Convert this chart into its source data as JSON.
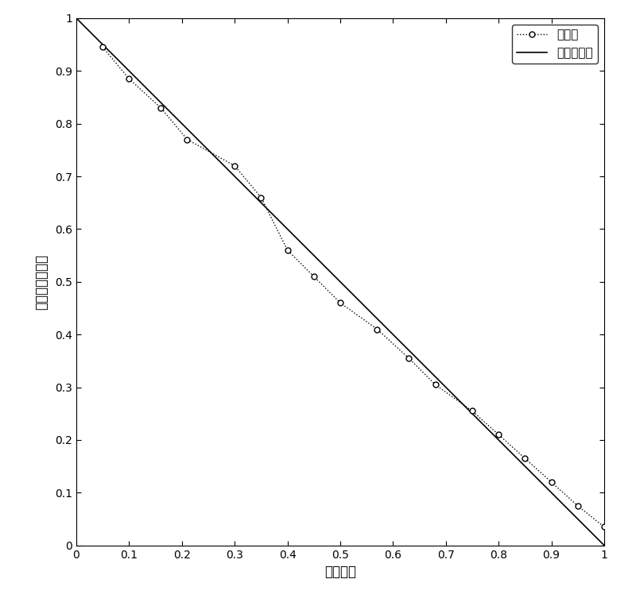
{
  "measured_x": [
    0.05,
    0.1,
    0.16,
    0.21,
    0.3,
    0.35,
    0.4,
    0.45,
    0.5,
    0.57,
    0.63,
    0.68,
    0.75,
    0.8,
    0.85,
    0.9,
    0.95,
    1.0
  ],
  "measured_y": [
    0.945,
    0.885,
    0.83,
    0.77,
    0.72,
    0.66,
    0.56,
    0.51,
    0.46,
    0.41,
    0.355,
    0.305,
    0.255,
    0.21,
    0.165,
    0.12,
    0.075,
    0.035
  ],
  "fit_x": [
    0.0,
    1.0
  ],
  "fit_y": [
    1.0,
    0.0
  ],
  "xlabel": "液相含率",
  "ylabel": "归一化的电阻値",
  "legend_measured": "测量値",
  "legend_fit": "线性拟合値",
  "xlim": [
    0.0,
    1.0
  ],
  "ylim": [
    0.0,
    1.0
  ],
  "xticks": [
    0.0,
    0.1,
    0.2,
    0.3,
    0.4,
    0.5,
    0.6,
    0.7,
    0.8,
    0.9,
    1.0
  ],
  "yticks": [
    0.0,
    0.1,
    0.2,
    0.3,
    0.4,
    0.5,
    0.6,
    0.7,
    0.8,
    0.9,
    1.0
  ],
  "line_color": "#000000",
  "dot_color": "#000000",
  "bg_color": "#ffffff",
  "tick_fontsize": 10,
  "label_fontsize": 12,
  "legend_fontsize": 11
}
